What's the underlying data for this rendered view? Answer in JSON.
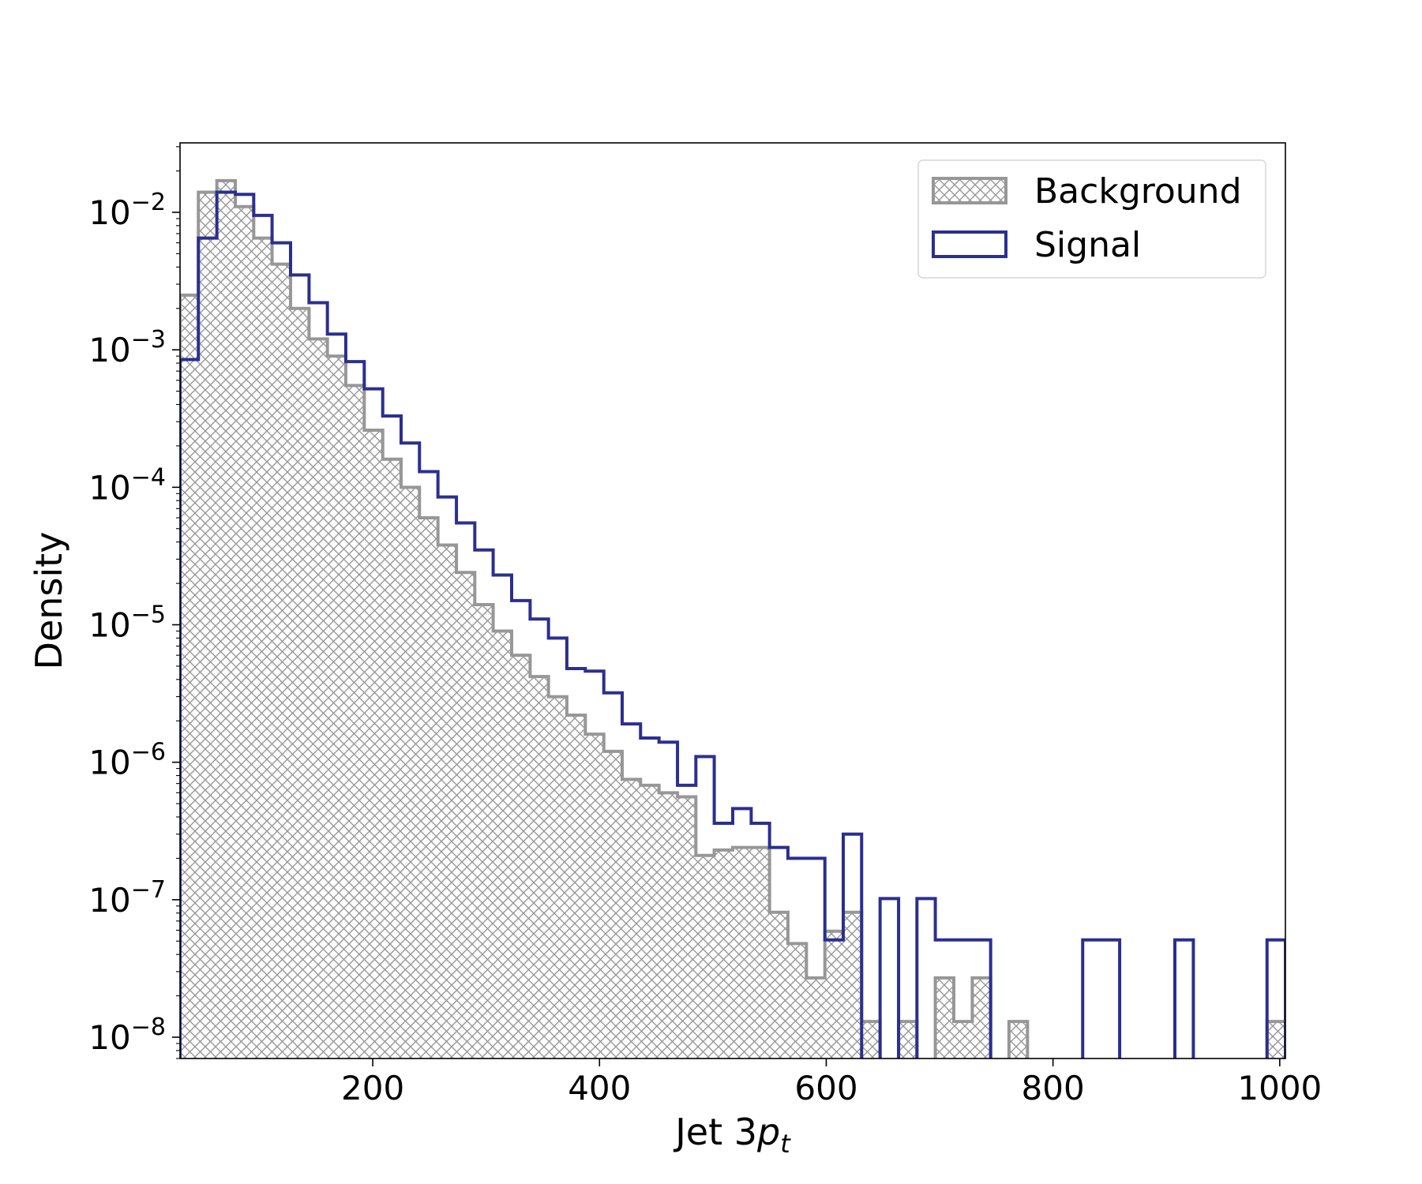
{
  "chart_data": {
    "type": "histogram",
    "title": "",
    "xlabel": "Jet 3",
    "xlabel_math": "p",
    "xlabel_sub": "t",
    "ylabel": "Density",
    "xlim": [
      30,
      1005
    ],
    "ylim": [
      7e-09,
      0.032
    ],
    "yscale": "log",
    "grid": false,
    "legend_position": "top-right",
    "xticks": [
      200,
      400,
      600,
      800,
      1000
    ],
    "ytick_exponents": [
      -2,
      -3,
      -4,
      -5,
      -6,
      -7,
      -8
    ],
    "bin_edges": [
      30,
      46.2,
      62.5,
      78.8,
      95,
      111.2,
      127.5,
      143.8,
      160,
      176.2,
      192.5,
      208.8,
      225,
      241.2,
      257.5,
      273.8,
      290,
      306.2,
      322.5,
      338.8,
      355,
      371.2,
      387.5,
      403.8,
      420,
      436.2,
      452.5,
      468.8,
      485,
      501.2,
      517.5,
      533.8,
      550,
      566.2,
      582.5,
      598.8,
      615,
      631.2,
      647.5,
      663.8,
      680,
      696.2,
      712.5,
      728.8,
      745,
      761.2,
      777.5,
      793.8,
      810,
      826.2,
      842.5,
      858.8,
      875,
      891.2,
      907.5,
      923.8,
      940,
      956.2,
      972.5,
      988.8,
      1005
    ],
    "series": [
      {
        "name": "Background",
        "style": "hatched",
        "color": "#979797",
        "values": [
          0.0025,
          0.014,
          0.017,
          0.011,
          0.0065,
          0.0042,
          0.002,
          0.0012,
          0.0009,
          0.00055,
          0.00026,
          0.00016,
          0.0001,
          6e-05,
          3.8e-05,
          2.4e-05,
          1.4e-05,
          9e-06,
          6e-06,
          4.2e-06,
          3e-06,
          2.2e-06,
          1.6e-06,
          1.2e-06,
          7.5e-07,
          6.8e-07,
          6e-07,
          5.6e-07,
          2.1e-07,
          2.3e-07,
          2.4e-07,
          2.4e-07,
          8.1e-08,
          4.8e-08,
          2.7e-08,
          5.9e-08,
          8.1e-08,
          1.3e-08,
          0,
          1.3e-08,
          0,
          2.7e-08,
          1.3e-08,
          2.7e-08,
          0,
          1.3e-08,
          0,
          0,
          0,
          0,
          0,
          0,
          0,
          0,
          0,
          0,
          0,
          0,
          0,
          1.3e-08
        ]
      },
      {
        "name": "Signal",
        "style": "step",
        "color": "#2b2f8f",
        "values": [
          0.00085,
          0.0065,
          0.014,
          0.0135,
          0.0095,
          0.006,
          0.0035,
          0.0022,
          0.0013,
          0.00082,
          0.00052,
          0.00033,
          0.00021,
          0.00013,
          8.5e-05,
          5.5e-05,
          3.5e-05,
          2.3e-05,
          1.5e-05,
          1.1e-05,
          8e-06,
          4.8e-06,
          4.6e-06,
          3.2e-06,
          1.9e-06,
          1.5e-06,
          1.4e-06,
          6.8e-07,
          1.1e-06,
          3.6e-07,
          4.6e-07,
          3.6e-07,
          2.4e-07,
          2e-07,
          2e-07,
          5.1e-08,
          3e-07,
          0,
          1.02e-07,
          0,
          1.02e-07,
          5.1e-08,
          5.1e-08,
          5.1e-08,
          0,
          0,
          0,
          0,
          0,
          5.1e-08,
          5.1e-08,
          0,
          0,
          0,
          5.1e-08,
          0,
          0,
          0,
          0,
          5.1e-08
        ]
      }
    ]
  }
}
